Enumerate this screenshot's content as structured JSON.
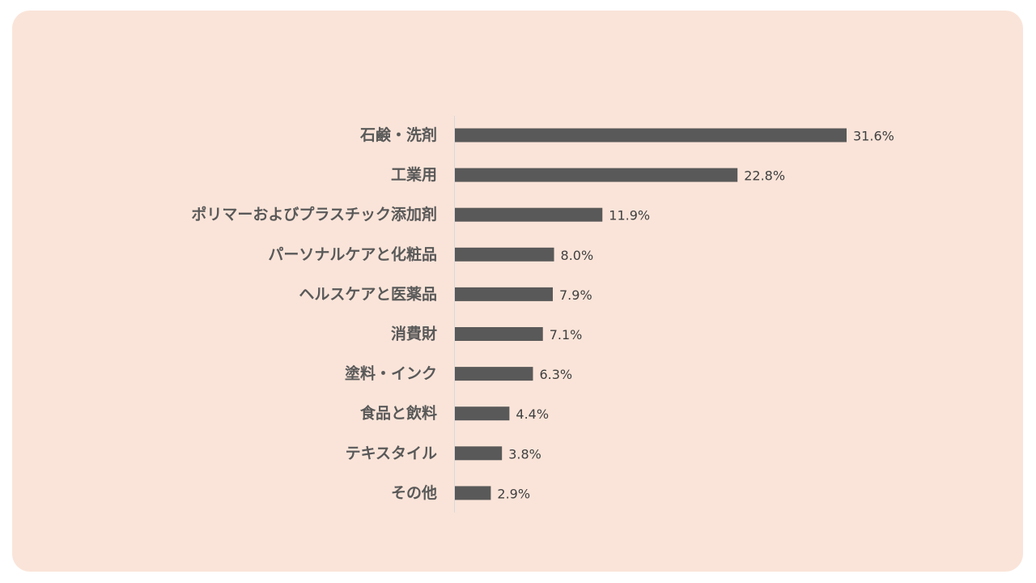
{
  "colors": {
    "background": "#fae4d9",
    "bar": "#595959",
    "axis": "#d9d9d9"
  },
  "chart_data": {
    "type": "bar",
    "orientation": "horizontal",
    "categories": [
      "石鹸・洗剤",
      "工業用",
      "ポリマーおよびプラスチック添加剤",
      "パーソナルケアと化粧品",
      "ヘルスケアと医薬品",
      "消費財",
      "塗料・インク",
      "食品と飲料",
      "テキスタイル",
      "その他"
    ],
    "values": [
      31.6,
      22.8,
      11.9,
      8.0,
      7.9,
      7.1,
      6.3,
      4.4,
      3.8,
      2.9
    ],
    "value_labels": [
      "31.6%",
      "22.8%",
      "11.9%",
      "8.0%",
      "7.9%",
      "7.1%",
      "6.3%",
      "4.4%",
      "3.8%",
      "2.9%"
    ],
    "unit": "%",
    "xlim": [
      0,
      31.6
    ],
    "grid": false,
    "legend": "none"
  }
}
